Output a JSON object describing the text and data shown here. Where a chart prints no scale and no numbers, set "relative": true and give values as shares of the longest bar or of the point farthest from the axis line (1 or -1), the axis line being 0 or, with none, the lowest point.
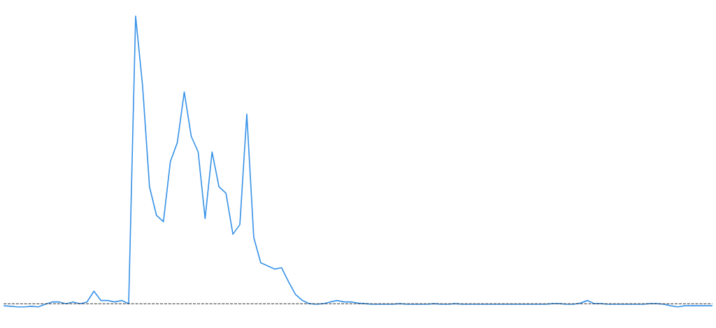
{
  "chart_data": {
    "type": "line",
    "relative": true,
    "categories": [
      null,
      null,
      null,
      null,
      null,
      null,
      null,
      null,
      null,
      null,
      null,
      null,
      null,
      null,
      null,
      null,
      null,
      null,
      null,
      null,
      null,
      null,
      null,
      null,
      null,
      null,
      null,
      null,
      null,
      null,
      null,
      null,
      null,
      null,
      null,
      null,
      null,
      null,
      null,
      null,
      null,
      null,
      null,
      null,
      null,
      null,
      null,
      null,
      null,
      null,
      null,
      null,
      null,
      null,
      null,
      null,
      null,
      null,
      null,
      null,
      null,
      null,
      null,
      null,
      null,
      null,
      null,
      null,
      null,
      null,
      null,
      null,
      null,
      null,
      null,
      null,
      null,
      null,
      null,
      null,
      null,
      null,
      null,
      null,
      null,
      null,
      null,
      null,
      null,
      null,
      null,
      null,
      null,
      null,
      null,
      null,
      null,
      null,
      null,
      null,
      null,
      null,
      null
    ],
    "series": [
      {
        "color": "#3b94e8",
        "values": [
          0.004,
          0.002,
          0,
          0,
          0.002,
          0,
          0.009,
          0.017,
          0.017,
          0.011,
          0.017,
          0.011,
          0.017,
          0.054,
          0.022,
          0.022,
          0.017,
          0.022,
          0.011,
          1,
          0.761,
          0.413,
          0.315,
          0.293,
          0.5,
          0.565,
          0.739,
          0.587,
          0.533,
          0.304,
          0.533,
          0.413,
          0.391,
          0.25,
          0.283,
          0.663,
          0.239,
          0.152,
          0.141,
          0.13,
          0.135,
          0.087,
          0.043,
          0.022,
          0.011,
          0.009,
          0.011,
          0.017,
          0.022,
          0.017,
          0.017,
          0.013,
          0.011,
          0.009,
          0.009,
          0.009,
          0.009,
          0.011,
          0.009,
          0.009,
          0.009,
          0.009,
          0.011,
          0.009,
          0.009,
          0.011,
          0.009,
          0.009,
          0.009,
          0.009,
          0.009,
          0.009,
          0.009,
          0.009,
          0.009,
          0.009,
          0.009,
          0.009,
          0.009,
          0.011,
          0.011,
          0.009,
          0.009,
          0.013,
          0.022,
          0.011,
          0.011,
          0.009,
          0.009,
          0.009,
          0.009,
          0.009,
          0.009,
          0.011,
          0.011,
          0.009,
          0.004,
          0,
          0.004,
          0.004,
          0.004,
          0.004,
          0.004
        ]
      }
    ],
    "ref_lines": [
      {
        "axis": "y",
        "value": 0.011,
        "line_style": "dashed",
        "color": "#333333"
      }
    ]
  }
}
